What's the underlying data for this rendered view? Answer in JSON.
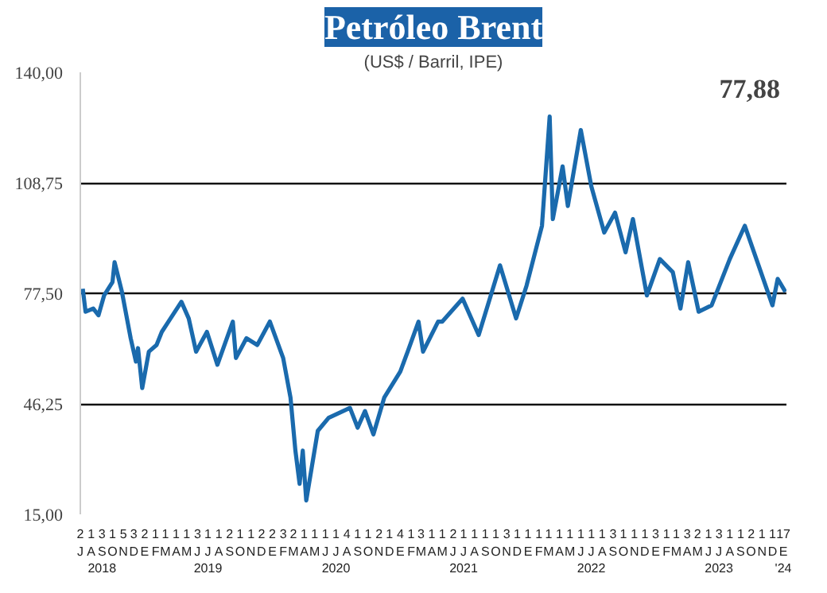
{
  "chart_data": {
    "type": "line",
    "title": "Petróleo Brent",
    "subtitle": "(US$ / Barril, IPE)",
    "annotations": [
      "77,88"
    ],
    "x": [
      "2018-07-08",
      "2018-07-16",
      "2018-08-07",
      "2018-08-22",
      "2018-09-07",
      "2018-10-01",
      "2018-10-07",
      "2018-10-28",
      "2018-11-22",
      "2018-12-07",
      "2018-12-13",
      "2018-12-25",
      "2019-01-13",
      "2019-02-04",
      "2019-02-19",
      "2019-03-10",
      "2019-04-16",
      "2019-05-07",
      "2019-05-28",
      "2019-06-28",
      "2019-07-28",
      "2019-09-10",
      "2019-09-19",
      "2019-10-19",
      "2019-11-19",
      "2019-12-25",
      "2020-02-01",
      "2020-02-22",
      "2020-03-07",
      "2020-03-19",
      "2020-03-28",
      "2020-04-07",
      "2020-05-10",
      "2020-06-10",
      "2020-08-10",
      "2020-09-01",
      "2020-09-22",
      "2020-10-16",
      "2020-11-16",
      "2021-01-01",
      "2021-01-22",
      "2021-02-22",
      "2021-03-07",
      "2021-04-19",
      "2021-05-01",
      "2021-06-28",
      "2021-08-13",
      "2021-10-13",
      "2021-11-28",
      "2021-12-28",
      "2022-02-10",
      "2022-03-04",
      "2022-03-13",
      "2022-04-10",
      "2022-04-25",
      "2022-06-01",
      "2022-07-01",
      "2022-08-07",
      "2022-09-07",
      "2022-10-07",
      "2022-10-28",
      "2022-12-07",
      "2023-01-13",
      "2023-02-19",
      "2023-03-13",
      "2023-04-04",
      "2023-05-04",
      "2023-06-10",
      "2023-08-01",
      "2023-09-13",
      "2023-10-16",
      "2023-12-01",
      "2023-12-16",
      "2024-01-07"
    ],
    "series": [
      {
        "color": "#1a6aad",
        "values": [
          78.8,
          72.3,
          73.2,
          71.3,
          76.9,
          80.7,
          86.3,
          77.9,
          64.8,
          58.2,
          62,
          50.7,
          61,
          62.9,
          66.6,
          69.5,
          75.1,
          70.4,
          61,
          66.6,
          57.3,
          69.5,
          59.2,
          64.8,
          62.9,
          69.5,
          59.2,
          48,
          33,
          23.6,
          33,
          18.9,
          38.6,
          42.3,
          45.1,
          39.5,
          44.2,
          37.6,
          48,
          55.4,
          61,
          69.5,
          61,
          69.5,
          69.5,
          76,
          65.7,
          85.4,
          70.4,
          79.7,
          96.6,
          127.5,
          98.5,
          113.4,
          102.2,
          123.7,
          107.8,
          94.7,
          100.3,
          89.1,
          98.5,
          76.9,
          87.2,
          83.5,
          73.2,
          86.3,
          72.3,
          74.1,
          87.2,
          96.6,
          87.2,
          74.1,
          81.6,
          77.9
        ]
      }
    ],
    "xlim": [
      "2018-07-01",
      "2024-01-10"
    ],
    "xticks": [
      {
        "value": "2018-07-01",
        "label": "2\nJ"
      },
      {
        "value": "2018-08-01",
        "label": "1\nA"
      },
      {
        "value": "2018-09-01",
        "label": "3\nS\n2018"
      },
      {
        "value": "2018-10-01",
        "label": "1\nO"
      },
      {
        "value": "2018-11-01",
        "label": "5\nN"
      },
      {
        "value": "2018-12-01",
        "label": "3\nD"
      },
      {
        "value": "2019-01-01",
        "label": "2\nE"
      },
      {
        "value": "2019-02-01",
        "label": "1\nF"
      },
      {
        "value": "2019-03-01",
        "label": "1\nM"
      },
      {
        "value": "2019-04-01",
        "label": "1\nA"
      },
      {
        "value": "2019-05-01",
        "label": "1\nM"
      },
      {
        "value": "2019-06-01",
        "label": "3\nJ"
      },
      {
        "value": "2019-07-01",
        "label": "1\nJ\n2019"
      },
      {
        "value": "2019-08-01",
        "label": "1\nA"
      },
      {
        "value": "2019-09-01",
        "label": "2\nS"
      },
      {
        "value": "2019-10-01",
        "label": "1\nO"
      },
      {
        "value": "2019-11-01",
        "label": "1\nN"
      },
      {
        "value": "2019-12-01",
        "label": "2\nD"
      },
      {
        "value": "2020-01-01",
        "label": "2\nE"
      },
      {
        "value": "2020-02-01",
        "label": "3\nF"
      },
      {
        "value": "2020-03-01",
        "label": "2\nM"
      },
      {
        "value": "2020-04-01",
        "label": "1\nA"
      },
      {
        "value": "2020-05-01",
        "label": "1\nM"
      },
      {
        "value": "2020-06-01",
        "label": "1\nJ"
      },
      {
        "value": "2020-07-01",
        "label": "1\nJ\n2020"
      },
      {
        "value": "2020-08-01",
        "label": "4\nA"
      },
      {
        "value": "2020-09-01",
        "label": "1\nS"
      },
      {
        "value": "2020-10-01",
        "label": "1\nO"
      },
      {
        "value": "2020-11-01",
        "label": "2\nN"
      },
      {
        "value": "2020-12-01",
        "label": "1\nD"
      },
      {
        "value": "2021-01-01",
        "label": "4\nE"
      },
      {
        "value": "2021-02-01",
        "label": "1\nF"
      },
      {
        "value": "2021-03-01",
        "label": "3\nM"
      },
      {
        "value": "2021-04-01",
        "label": "1\nA"
      },
      {
        "value": "2021-05-01",
        "label": "1\nM"
      },
      {
        "value": "2021-06-01",
        "label": "2\nJ"
      },
      {
        "value": "2021-07-01",
        "label": "1\nJ\n2021"
      },
      {
        "value": "2021-08-01",
        "label": "1\nA"
      },
      {
        "value": "2021-09-01",
        "label": "1\nS"
      },
      {
        "value": "2021-10-01",
        "label": "1\nO"
      },
      {
        "value": "2021-11-01",
        "label": "3\nN"
      },
      {
        "value": "2021-12-01",
        "label": "1\nD"
      },
      {
        "value": "2022-01-01",
        "label": "1\nE"
      },
      {
        "value": "2022-02-01",
        "label": "1\nF"
      },
      {
        "value": "2022-03-01",
        "label": "1\nM"
      },
      {
        "value": "2022-04-01",
        "label": "1\nA"
      },
      {
        "value": "2022-05-01",
        "label": "1\nM"
      },
      {
        "value": "2022-06-01",
        "label": "1\nJ"
      },
      {
        "value": "2022-07-01",
        "label": "1\nJ\n2022"
      },
      {
        "value": "2022-08-01",
        "label": "1\nA"
      },
      {
        "value": "2022-09-01",
        "label": "3\nS"
      },
      {
        "value": "2022-10-01",
        "label": "1\nO"
      },
      {
        "value": "2022-11-01",
        "label": "1\nN"
      },
      {
        "value": "2022-12-01",
        "label": "1\nD"
      },
      {
        "value": "2023-01-01",
        "label": "3\nE"
      },
      {
        "value": "2023-02-01",
        "label": "1\nF"
      },
      {
        "value": "2023-03-01",
        "label": "1\nM"
      },
      {
        "value": "2023-04-01",
        "label": "3\nA"
      },
      {
        "value": "2023-05-01",
        "label": "2\nM"
      },
      {
        "value": "2023-06-01",
        "label": "1\nJ"
      },
      {
        "value": "2023-07-01",
        "label": "3\nJ\n2023"
      },
      {
        "value": "2023-08-01",
        "label": "1\nA"
      },
      {
        "value": "2023-09-01",
        "label": "1\nS"
      },
      {
        "value": "2023-10-01",
        "label": "2\nO"
      },
      {
        "value": "2023-11-01",
        "label": "1\nN"
      },
      {
        "value": "2023-12-01",
        "label": "1\nD"
      },
      {
        "value": "2024-01-01",
        "label": "17\nE\n'24"
      }
    ],
    "ylim": [
      15,
      140
    ],
    "yticks": [
      {
        "value": 15,
        "label": "15,00"
      },
      {
        "value": 46.25,
        "label": "46,25"
      },
      {
        "value": 77.5,
        "label": "77,50"
      },
      {
        "value": 108.75,
        "label": "108,75"
      },
      {
        "value": 140,
        "label": "140,00"
      }
    ],
    "grid": "y",
    "marker": "none",
    "line_style": "solid"
  }
}
